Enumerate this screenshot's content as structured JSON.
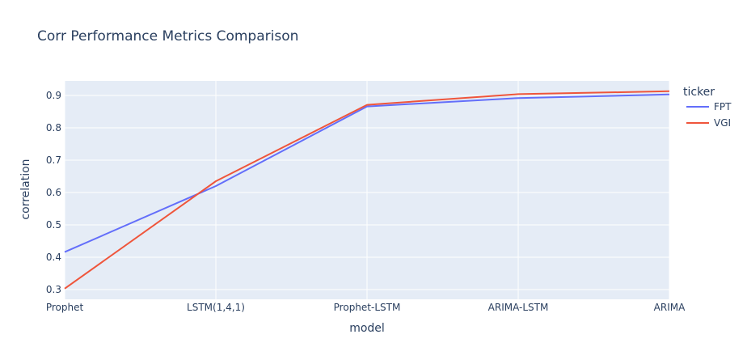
{
  "chart_data": {
    "type": "line",
    "title": "Corr Performance Metrics Comparison",
    "xlabel": "model",
    "ylabel": "correlation",
    "categories": [
      "Prophet",
      "LSTM(1,4,1)",
      "Prophet-LSTM",
      "ARIMA-LSTM",
      "ARIMA"
    ],
    "ylim": [
      0.27,
      0.945
    ],
    "yticks": [
      0.3,
      0.4,
      0.5,
      0.6,
      0.7,
      0.8,
      0.9
    ],
    "grid": true,
    "legend": {
      "title": "ticker",
      "placement": "right"
    },
    "series": [
      {
        "name": "FPT",
        "color": "#636efa",
        "values": [
          0.416,
          0.62,
          0.866,
          0.892,
          0.903
        ]
      },
      {
        "name": "VGI",
        "color": "#ef553b",
        "values": [
          0.303,
          0.635,
          0.871,
          0.904,
          0.913
        ]
      }
    ]
  }
}
